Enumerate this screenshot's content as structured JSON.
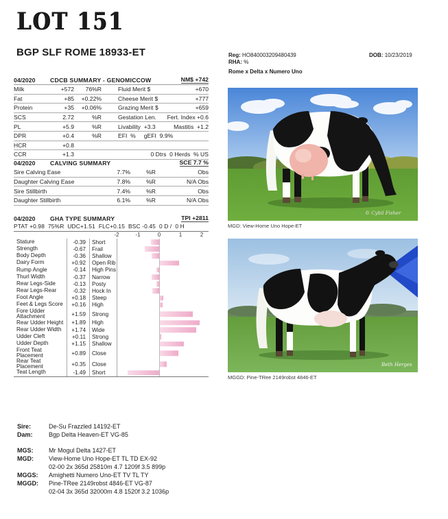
{
  "header": {
    "lot": "LOT 151",
    "name": "BGP SLF ROME 18933-ET",
    "reg_label": "Reg:",
    "reg_value": "HO840003209480439",
    "rha_label": "RHA:",
    "rha_value": "%",
    "dob_label": "DOB:",
    "dob_value": "10/23/2019",
    "cross": "Rome x Delta x Numero Uno"
  },
  "cdcb": {
    "date": "04/2020",
    "title": "CDCB SUMMARY - GENOMICCOW",
    "badge": "NM$ +742",
    "rows": [
      {
        "label": "Milk",
        "value": "+572",
        "rel": "76%R",
        "mid": "Fluid Merit $",
        "right": "+670"
      },
      {
        "label": "Fat",
        "value": "+85",
        "rel": "+0.22%",
        "mid": "Cheese Merit $",
        "right": "+777"
      },
      {
        "label": "Protein",
        "value": "+35",
        "rel": "+0.06%",
        "mid": "Grazing Merit $",
        "right": "+659"
      },
      {
        "label": "SCS",
        "value": "2.72",
        "rel": "%R",
        "mid": "Gestation Len.",
        "right": "Fert. Index +0.6"
      },
      {
        "label": "PL",
        "value": "+5.9",
        "rel": "%R",
        "mid": "Livability  +3.3",
        "right": "Mastitis  +1.2"
      },
      {
        "label": "DPR",
        "value": "+0.4",
        "rel": "%R",
        "mid": "EFI  %     gEFI  9.9%",
        "right": ""
      },
      {
        "label": "HCR",
        "value": "+0.8",
        "rel": "",
        "mid": "",
        "right": ""
      },
      {
        "label": "CCR",
        "value": "+1.3",
        "rel": "",
        "mid": "",
        "right": "0 Dtrs  0 Herds  % US"
      }
    ]
  },
  "calving": {
    "date": "04/2020",
    "title": "CALVING SUMMARY",
    "badge": "SCE 7.7 %",
    "rows": [
      {
        "label": "Sire Calving Ease",
        "value": "7.7%",
        "rel": "%R",
        "obs": "Obs"
      },
      {
        "label": "Daughter Calving Ease",
        "value": "7.8%",
        "rel": "%R",
        "obs": "N/A Obs"
      },
      {
        "label": "Sire Stillbirth",
        "value": "7.4%",
        "rel": "%R",
        "obs": "Obs"
      },
      {
        "label": "Daughter Stillbirth",
        "value": "6.1%",
        "rel": "%R",
        "obs": "N/A Obs"
      }
    ]
  },
  "gha": {
    "date": "04/2020",
    "title": "GHA TYPE SUMMARY",
    "badge": "TPI +2811",
    "subline": "PTAT +0.98  75%R  UDC+1.51  FLC+0.15  BSC -0.45  0 D /  0 H",
    "axis_ticks": [
      "-2",
      "-1",
      "0",
      "1",
      "2"
    ],
    "axis_range": [
      -2,
      2
    ],
    "traits": [
      {
        "name": "Stature",
        "value": -0.39,
        "display": "-0.39",
        "desc": "Short"
      },
      {
        "name": "Strength",
        "value": -0.67,
        "display": "-0.67",
        "desc": "Frail"
      },
      {
        "name": "Body Depth",
        "value": -0.36,
        "display": "-0.36",
        "desc": "Shallow"
      },
      {
        "name": "Dairy Form",
        "value": 0.92,
        "display": "+0.92",
        "desc": "Open Rib"
      },
      {
        "name": "Rump Angle",
        "value": -0.14,
        "display": "-0.14",
        "desc": "High Pins"
      },
      {
        "name": "Thurl Width",
        "value": -0.37,
        "display": "-0.37",
        "desc": "Narrow"
      },
      {
        "name": "Rear Legs-Side",
        "value": -0.13,
        "display": "-0.13",
        "desc": "Posty"
      },
      {
        "name": "Rear Legs-Rear",
        "value": -0.32,
        "display": "-0.32",
        "desc": "Hock In"
      },
      {
        "name": "Foot Angle",
        "value": 0.18,
        "display": "+0.18",
        "desc": "Steep"
      },
      {
        "name": "Feet & Legs Score",
        "value": 0.16,
        "display": "+0.16",
        "desc": "High"
      },
      {
        "name": "Fore Udder Attachment",
        "value": 1.59,
        "display": "+1.59",
        "desc": "Strong",
        "two_line": true
      },
      {
        "name": "Rear Udder Height",
        "value": 1.89,
        "display": "+1.89",
        "desc": "High"
      },
      {
        "name": "Rear Udder Width",
        "value": 1.74,
        "display": "+1.74",
        "desc": "Wide"
      },
      {
        "name": "Udder Cleft",
        "value": 0.11,
        "display": "+0.11",
        "desc": "Strong"
      },
      {
        "name": "Udder Depth",
        "value": 1.15,
        "display": "+1.15",
        "desc": "Shallow"
      },
      {
        "name": "Front Teat Placement",
        "value": 0.89,
        "display": "+0.89",
        "desc": "Close",
        "two_line": true
      },
      {
        "name": "Rear Teat Placement",
        "value": 0.35,
        "display": "+0.35",
        "desc": "Close",
        "two_line": true
      },
      {
        "name": "Teat Length",
        "value": -1.49,
        "display": "-1.49",
        "desc": "Short"
      }
    ]
  },
  "photos": [
    {
      "caption": "MGD: View-Home Uno Hope-ET",
      "credit": "© Cybil Fisher"
    },
    {
      "caption": "MGGD: Pine-TRee 2149robst 4846-ET",
      "credit": "Beth Herges"
    }
  ],
  "pedigree": {
    "rows": [
      {
        "label": "Sire:",
        "value": "De-Su Frazzled 14192-ET"
      },
      {
        "label": "Dam:",
        "value": "Bgp Delta Heaven-ET VG-85"
      },
      {
        "label": "MGS:",
        "value": "Mr Mogul Delta 1427-ET",
        "gap": true
      },
      {
        "label": "MGD:",
        "value": "View-Home Uno Hope-ET TL TD EX-92"
      },
      {
        "label": "",
        "value": "02-00 2x 365d 25810m 4.7 1209f 3.5 899p"
      },
      {
        "label": "MGGS:",
        "value": "Amighetti Numero Uno-ET TV TL TY"
      },
      {
        "label": "MGGD:",
        "value": "Pine-TRee 2149robst 4846-ET VG-87"
      },
      {
        "label": "",
        "value": "02-04 3x 365d 32000m 4.8 1520f 3.2 1036p"
      }
    ]
  },
  "colors": {
    "bar_light": "#f9dbe7",
    "bar_dark": "#efabc9",
    "rule": "#aaaaaa",
    "text": "#1c1c1c"
  }
}
